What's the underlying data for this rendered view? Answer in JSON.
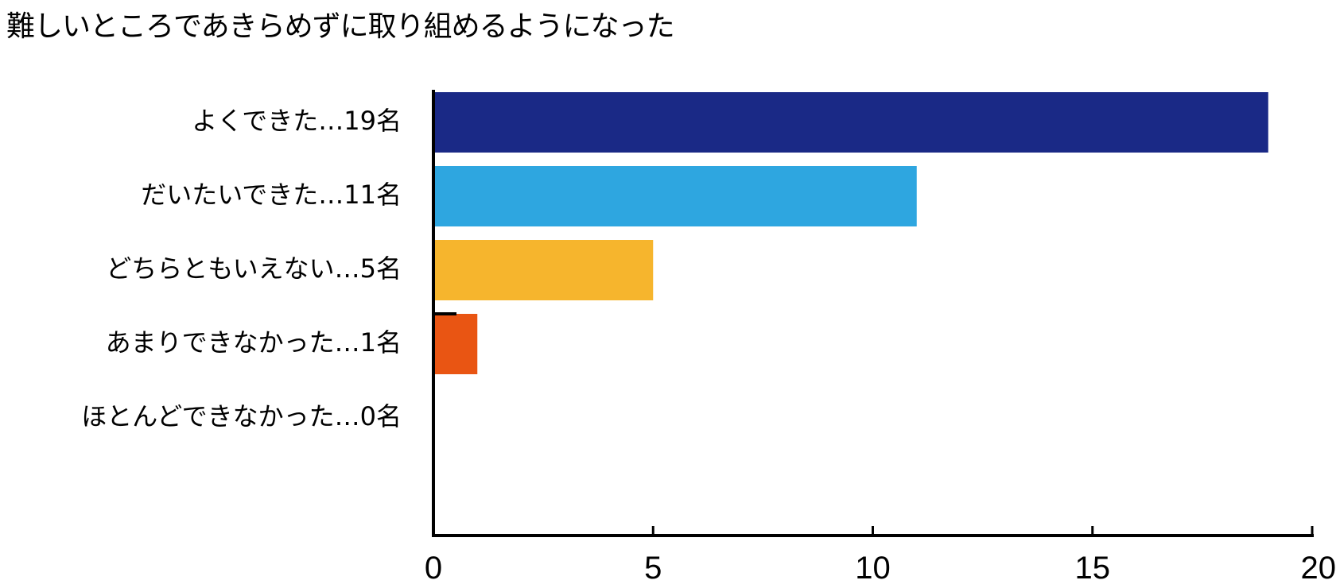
{
  "title": "難しいところであきらめずに取り組めるようになった",
  "chart_data": {
    "type": "bar",
    "orientation": "horizontal",
    "title": "難しいところであきらめずに取り組めるようになった",
    "categories": [
      "よくできた…19名",
      "だいたいできた…11名",
      "どちらともいえない…5名",
      "あまりできなかった…1名",
      "ほとんどできなかった…0名"
    ],
    "values": [
      19,
      11,
      5,
      1,
      0
    ],
    "colors": [
      "#1a2986",
      "#2ea6e0",
      "#f6b52d",
      "#e95513",
      "#ffffff"
    ],
    "xlim": [
      0,
      20
    ],
    "xticks": [
      0,
      5,
      10,
      15,
      20
    ],
    "xlabel": "",
    "ylabel": "",
    "grid": false,
    "legend": "none"
  }
}
